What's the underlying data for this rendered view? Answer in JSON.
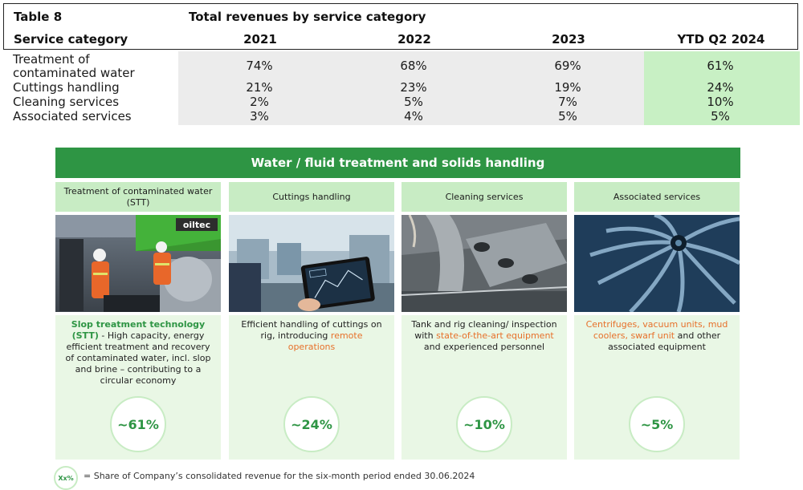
{
  "table": {
    "label": "Table 8",
    "caption": "Total revenues by service category",
    "header_category": "Service category",
    "years": [
      "2021",
      "2022",
      "2023",
      "YTD Q2 2024"
    ],
    "rows": [
      {
        "category": "Treatment of contaminated water",
        "category_lines": [
          "Treatment of",
          "contaminated water"
        ],
        "values": [
          "74%",
          "68%",
          "69%",
          "61%"
        ]
      },
      {
        "category": "Cuttings handling",
        "category_lines": [
          "Cuttings handling"
        ],
        "values": [
          "21%",
          "23%",
          "19%",
          "24%"
        ]
      },
      {
        "category": "Cleaning services",
        "category_lines": [
          "Cleaning services"
        ],
        "values": [
          "2%",
          "5%",
          "7%",
          "10%"
        ]
      },
      {
        "category": "Associated services",
        "category_lines": [
          "Associated services"
        ],
        "values": [
          "3%",
          "4%",
          "5%",
          "5%"
        ]
      }
    ]
  },
  "panel": {
    "banner": "Water / fluid treatment and solids handling",
    "columns": [
      {
        "heading": "Treatment of contaminated water (STT)",
        "description": [
          {
            "text": "Slop treatment technology (STT)",
            "style": "green"
          },
          {
            "text": " - High capacity, energy efficient treatment and recovery of contaminated water, incl. slop and brine – contributing to a circular economy",
            "style": "plain"
          }
        ],
        "share": "~61%"
      },
      {
        "heading": "Cuttings handling",
        "description": [
          {
            "text": "Efficient handling of cuttings on rig, introducing ",
            "style": "plain"
          },
          {
            "text": "remote operations",
            "style": "orange"
          }
        ],
        "share": "~24%"
      },
      {
        "heading": "Cleaning services",
        "description": [
          {
            "text": "Tank and rig cleaning/ inspection with ",
            "style": "plain"
          },
          {
            "text": "state-of-the-art equipment",
            "style": "orange"
          },
          {
            "text": " and experienced personnel",
            "style": "plain"
          }
        ],
        "share": "~10%"
      },
      {
        "heading": "Associated services",
        "description": [
          {
            "text": "Centrifuges, vacuum units, mud coolers, swarf unit",
            "style": "orange"
          },
          {
            "text": " and other associated equipment",
            "style": "plain"
          }
        ],
        "share": "~5%"
      }
    ],
    "photo_logo_text": "oiltec"
  },
  "legend": {
    "symbol": "Xx%",
    "text": "= Share of Company’s consolidated revenue for the six-month period ended 30.06.2024"
  },
  "colors": {
    "accent_green": "#2e9544",
    "light_green": "#c8ecc4",
    "highlight_col": "#c8f0c4",
    "orange": "#e7702a"
  }
}
